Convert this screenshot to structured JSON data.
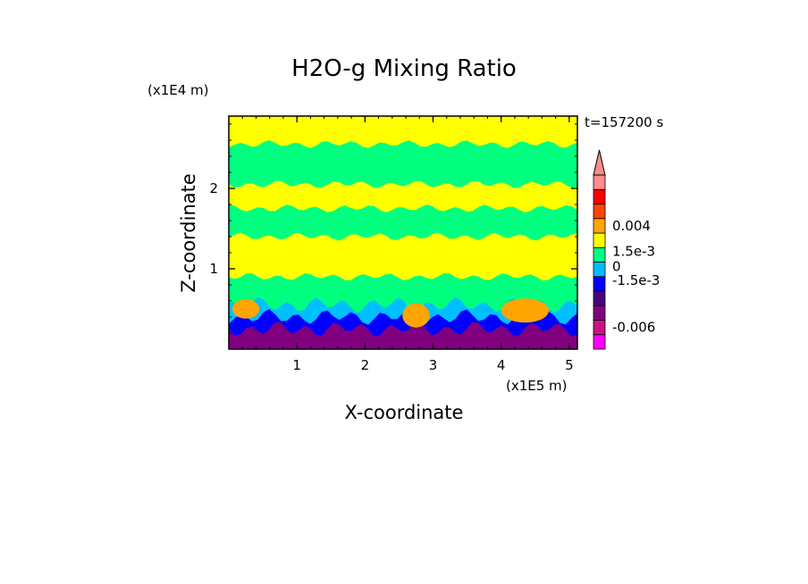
{
  "chart_data": {
    "type": "heatmap",
    "title": "H2O-g Mixing Ratio",
    "time_label": "t=157200 s",
    "xlabel": "X-coordinate",
    "ylabel": "Z-coordinate",
    "x_unit": "(x1E5 m)",
    "y_unit": "(x1E4 m)",
    "xlim": [
      0,
      5.12
    ],
    "ylim": [
      0,
      2.9
    ],
    "x_ticks": [
      1,
      2,
      3,
      4,
      5
    ],
    "y_ticks": [
      1,
      2
    ],
    "x_tick_labels": [
      "1",
      "2",
      "3",
      "4",
      "5"
    ],
    "y_tick_labels": [
      "1",
      "2"
    ],
    "colorbar": {
      "colors": [
        "#ff00ff",
        "#c71585",
        "#800080",
        "#4b0082",
        "#0000ff",
        "#00bfff",
        "#00ff7f",
        "#ffff00",
        "#ffa500",
        "#ff4500",
        "#ff0000",
        "#ff8c8c"
      ],
      "labels": [
        {
          "text": "-0.006",
          "level": 1.5
        },
        {
          "text": "-1.5e-3",
          "level": 4.75
        },
        {
          "text": "0",
          "level": 5.7
        },
        {
          "text": "1.5e-3",
          "level": 6.75
        },
        {
          "text": "0.004",
          "level": 8.5
        }
      ],
      "extend_top": true
    },
    "bands": [
      {
        "z_top": 0.25,
        "color": "#800080"
      },
      {
        "z_top": 0.4,
        "color": "#0000ff"
      },
      {
        "z_top": 0.55,
        "color": "#00bfff"
      },
      {
        "z_top": 0.9,
        "color": "#00ff7f"
      },
      {
        "z_top": 1.4,
        "color": "#ffff00"
      },
      {
        "z_top": 1.75,
        "color": "#00ff7f"
      },
      {
        "z_top": 2.05,
        "color": "#ffff00"
      },
      {
        "z_top": 2.55,
        "color": "#00ff7f"
      },
      {
        "z_top": 2.9,
        "color": "#ffff00"
      }
    ],
    "blobs": [
      {
        "x": 2.75,
        "z": 0.42,
        "rx": 0.2,
        "rz": 0.15,
        "color": "#ffa500"
      },
      {
        "x": 4.35,
        "z": 0.48,
        "rx": 0.35,
        "rz": 0.15,
        "color": "#ffa500"
      },
      {
        "x": 0.25,
        "z": 0.5,
        "rx": 0.2,
        "rz": 0.12,
        "color": "#ffa500"
      }
    ]
  }
}
